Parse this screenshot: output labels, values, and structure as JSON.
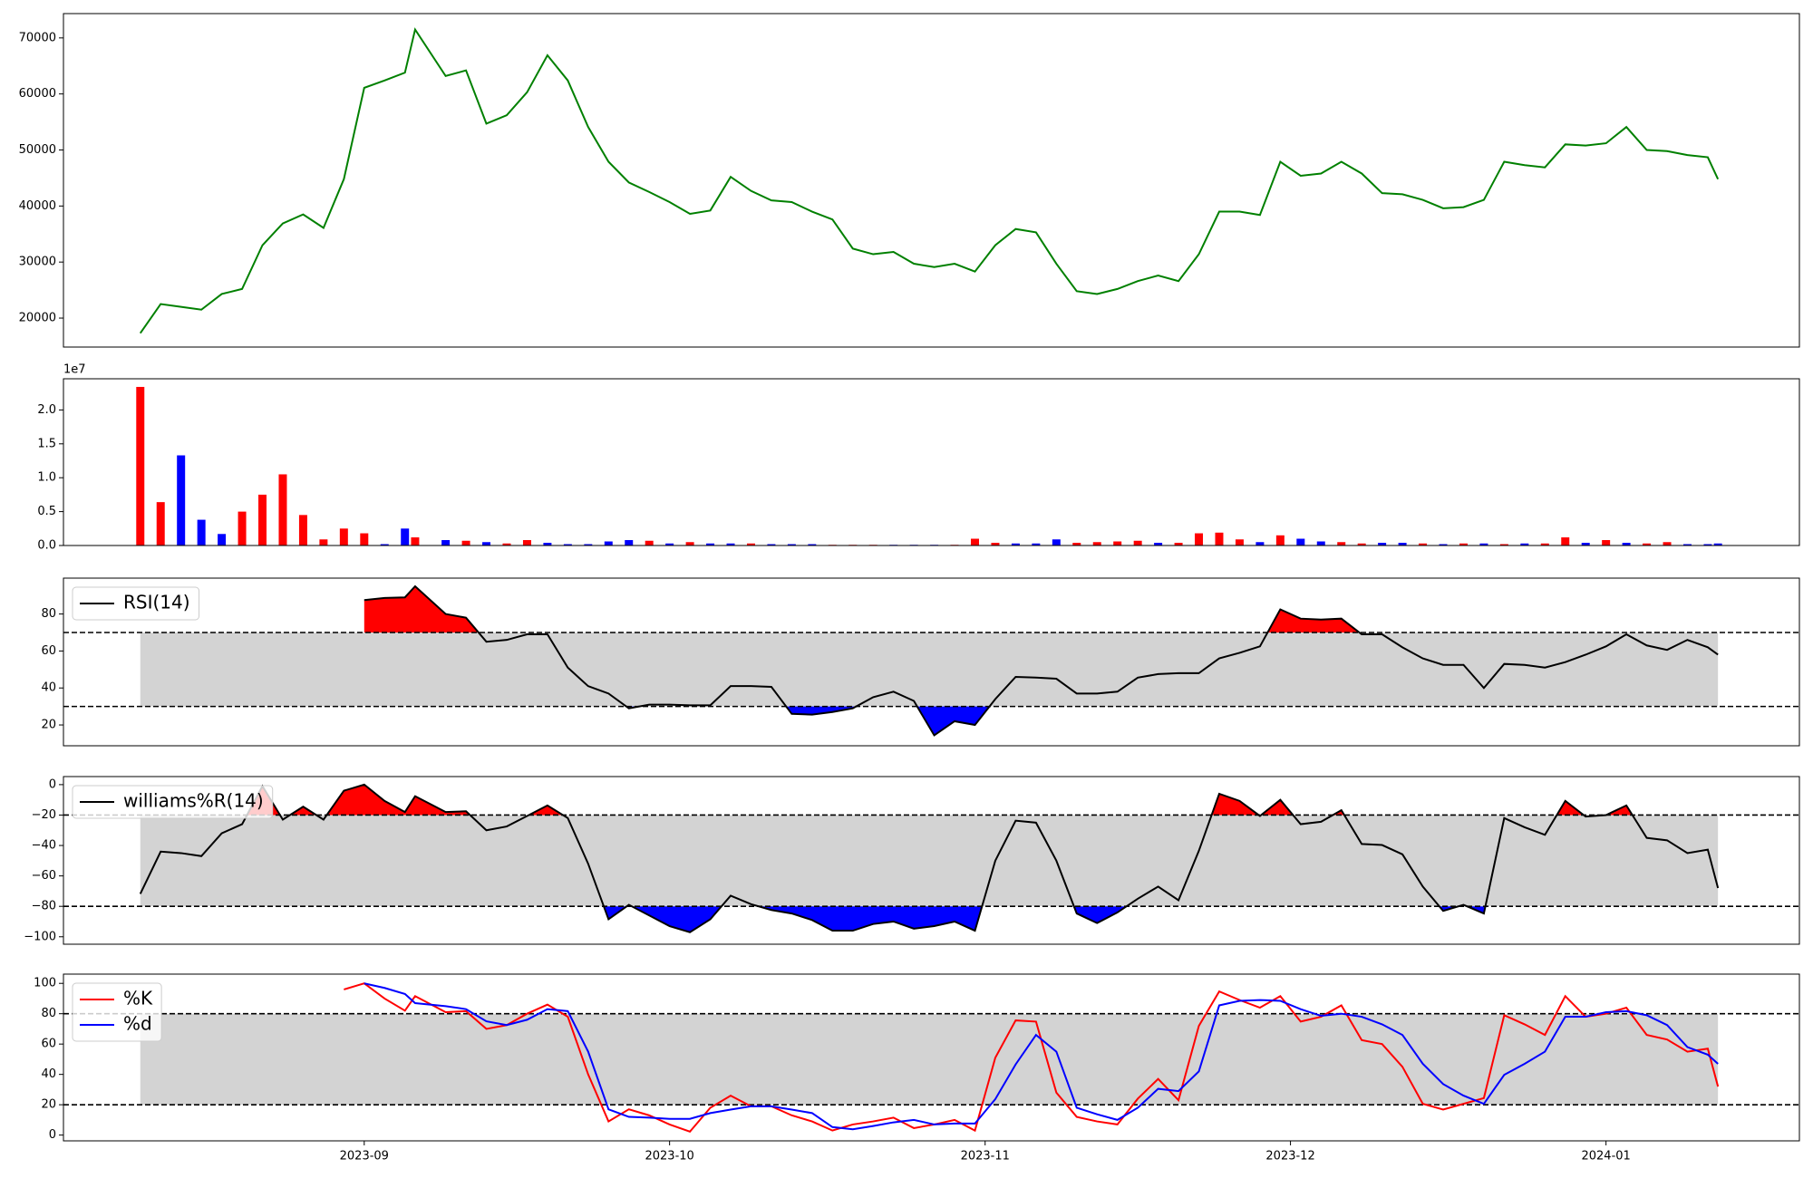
{
  "chart_data": [
    {
      "type": "line",
      "x": [
        9,
        11,
        13,
        15,
        17,
        19,
        21,
        23,
        25,
        27,
        29,
        31,
        33,
        35,
        36,
        39,
        41,
        43,
        45,
        47,
        49,
        51,
        53,
        55,
        57,
        59,
        61,
        63,
        65,
        67,
        69,
        71,
        73,
        75,
        77,
        79,
        81,
        83,
        85,
        87,
        89,
        91,
        93,
        95,
        97,
        99,
        101,
        103,
        105,
        107,
        109,
        111,
        113,
        115,
        117,
        119,
        121,
        123,
        125,
        127,
        129,
        131,
        133,
        135,
        137,
        139,
        141,
        143,
        145,
        147,
        149,
        151,
        153,
        155,
        157,
        159,
        161,
        163,
        164
      ],
      "xlim": [
        1.45,
        172
      ],
      "ylim": [
        14830,
        74340
      ],
      "yticks": [
        20000,
        30000,
        40000,
        50000,
        60000,
        70000
      ],
      "series": [
        {
          "color": "green",
          "values": [
            17300,
            22500,
            22000,
            21500,
            24300,
            25200,
            33000,
            36900,
            38500,
            36100,
            44800,
            61100,
            62400,
            63800,
            71500,
            63200,
            64200,
            54700,
            56200,
            60300,
            66900,
            62400,
            54100,
            47900,
            44200,
            42500,
            40700,
            38600,
            39200,
            45200,
            42700,
            41000,
            40700,
            39000,
            37600,
            32400,
            31400,
            31800,
            29700,
            29100,
            29700,
            28300,
            33000,
            35900,
            35300,
            29700,
            24800,
            24300,
            25200,
            26600,
            27600,
            26600,
            31400,
            39000,
            39000,
            38400,
            47900,
            45400,
            45800,
            47900,
            45800,
            42300,
            42100,
            41100,
            39600,
            39800,
            41100,
            47900,
            47300,
            46900,
            51000,
            50800,
            51200,
            54100,
            50000,
            49800,
            49100,
            48700,
            44800
          ]
        }
      ]
    },
    {
      "type": "bar",
      "x": [
        9,
        11,
        13,
        15,
        17,
        19,
        21,
        23,
        25,
        27,
        29,
        31,
        33,
        35,
        36,
        39,
        41,
        43,
        45,
        47,
        49,
        51,
        53,
        55,
        57,
        59,
        61,
        63,
        65,
        67,
        69,
        71,
        73,
        75,
        77,
        79,
        81,
        83,
        85,
        87,
        89,
        91,
        93,
        95,
        97,
        99,
        101,
        103,
        105,
        107,
        109,
        111,
        113,
        115,
        117,
        119,
        121,
        123,
        125,
        127,
        129,
        131,
        133,
        135,
        137,
        139,
        141,
        143,
        145,
        147,
        149,
        151,
        153,
        155,
        157,
        159,
        161,
        163,
        164
      ],
      "xlim": [
        1.45,
        172
      ],
      "ylim": [
        0,
        24600000
      ],
      "yticks": [
        {
          "value": 0,
          "label": "0.0"
        },
        {
          "value": 5000000,
          "label": "0.5"
        },
        {
          "value": 10000000,
          "label": "1.0"
        },
        {
          "value": 15000000,
          "label": "1.5"
        },
        {
          "value": 20000000,
          "label": "2.0"
        }
      ],
      "offset_label": "1e7",
      "values": [
        23400000,
        6400000,
        13300000,
        3800000,
        1700000,
        5000000,
        7500000,
        10500000,
        4500000,
        900000,
        2500000,
        1800000,
        200000,
        2500000,
        1200000,
        800000,
        700000,
        500000,
        300000,
        800000,
        400000,
        200000,
        200000,
        600000,
        800000,
        700000,
        300000,
        500000,
        300000,
        300000,
        300000,
        200000,
        200000,
        200000,
        100000,
        100000,
        100000,
        100000,
        100000,
        100000,
        100000,
        1000000,
        400000,
        300000,
        300000,
        900000,
        400000,
        500000,
        600000,
        700000,
        400000,
        400000,
        1800000,
        1900000,
        900000,
        500000,
        1500000,
        1000000,
        600000,
        500000,
        300000,
        400000,
        400000,
        300000,
        200000,
        300000,
        300000,
        200000,
        300000,
        300000,
        1200000,
        400000,
        800000,
        400000,
        300000,
        500000,
        200000,
        200000,
        300000
      ],
      "colors": [
        "red",
        "red",
        "blue",
        "blue",
        "blue",
        "red",
        "red",
        "red",
        "red",
        "red",
        "red",
        "red",
        "blue",
        "blue",
        "red",
        "blue",
        "red",
        "blue",
        "red",
        "red",
        "blue",
        "blue",
        "blue",
        "blue",
        "blue",
        "red",
        "blue",
        "red",
        "blue",
        "blue",
        "red",
        "blue",
        "blue",
        "blue",
        "red",
        "red",
        "red",
        "blue",
        "blue",
        "blue",
        "red",
        "red",
        "red",
        "blue",
        "blue",
        "blue",
        "red",
        "red",
        "red",
        "red",
        "blue",
        "red",
        "red",
        "red",
        "red",
        "blue",
        "red",
        "blue",
        "blue",
        "red",
        "red",
        "blue",
        "blue",
        "red",
        "blue",
        "red",
        "blue",
        "red",
        "blue",
        "red",
        "red",
        "blue",
        "red",
        "blue",
        "red",
        "red",
        "blue",
        "blue",
        "blue"
      ]
    },
    {
      "type": "line",
      "x": [
        9,
        11,
        13,
        15,
        17,
        19,
        21,
        23,
        25,
        27,
        29,
        31,
        33,
        35,
        36,
        39,
        41,
        43,
        45,
        47,
        49,
        51,
        53,
        55,
        57,
        59,
        61,
        63,
        65,
        67,
        69,
        71,
        73,
        75,
        77,
        79,
        81,
        83,
        85,
        87,
        89,
        91,
        93,
        95,
        97,
        99,
        101,
        103,
        105,
        107,
        109,
        111,
        113,
        115,
        117,
        119,
        121,
        123,
        125,
        127,
        129,
        131,
        133,
        135,
        137,
        139,
        141,
        143,
        145,
        147,
        149,
        151,
        153,
        155,
        157,
        159,
        161,
        163,
        164
      ],
      "xlim": [
        1.45,
        172
      ],
      "ylim": [
        8.75,
        99.4
      ],
      "yticks": [
        20,
        40,
        60,
        80
      ],
      "thresholds": [
        70,
        30
      ],
      "fill_colors": {
        "band": "lightgray",
        "above": "red",
        "below": "blue"
      },
      "legend": "upper left",
      "series": [
        {
          "name": "RSI(14)",
          "color": "black",
          "values": [
            null,
            null,
            null,
            null,
            null,
            null,
            null,
            null,
            null,
            null,
            null,
            87.5,
            88.7,
            89,
            95,
            80,
            78,
            65,
            66,
            69,
            69,
            51,
            41,
            37,
            29,
            31,
            31,
            30.6,
            30.6,
            41,
            41,
            40.6,
            26,
            25.6,
            27,
            29,
            35,
            38,
            33,
            14.4,
            22,
            20,
            34,
            46,
            45.6,
            45,
            37,
            37,
            38,
            45.6,
            47.5,
            48,
            48,
            56,
            59,
            62.5,
            82.5,
            77.5,
            77,
            77.5,
            69,
            69,
            62,
            56,
            52.5,
            52.5,
            40,
            53,
            52.5,
            51,
            54,
            58,
            62.5,
            69,
            63,
            60.6,
            66,
            62,
            58
          ]
        }
      ]
    },
    {
      "type": "line",
      "x": [
        9,
        11,
        13,
        15,
        17,
        19,
        21,
        23,
        25,
        27,
        29,
        31,
        33,
        35,
        36,
        39,
        41,
        43,
        45,
        47,
        49,
        51,
        53,
        55,
        57,
        59,
        61,
        63,
        65,
        67,
        69,
        71,
        73,
        75,
        77,
        79,
        81,
        83,
        85,
        87,
        89,
        91,
        93,
        95,
        97,
        99,
        101,
        103,
        105,
        107,
        109,
        111,
        113,
        115,
        117,
        119,
        121,
        123,
        125,
        127,
        129,
        131,
        133,
        135,
        137,
        139,
        141,
        143,
        145,
        147,
        149,
        151,
        153,
        155,
        157,
        159,
        161,
        163,
        164
      ],
      "xlim": [
        1.45,
        172
      ],
      "ylim": [
        -104.9,
        5.3
      ],
      "yticks": [
        0,
        {
          "value": -20,
          "label": "−20"
        },
        {
          "value": -40,
          "label": "−40"
        },
        {
          "value": -60,
          "label": "−60"
        },
        {
          "value": -80,
          "label": "−80"
        },
        {
          "value": -100,
          "label": "−100"
        }
      ],
      "thresholds": [
        -20,
        -80
      ],
      "fill_colors": {
        "band": "lightgray",
        "above": "red",
        "below": "blue"
      },
      "legend": "upper left",
      "series": [
        {
          "name": "williams%R(14)",
          "color": "black",
          "values": [
            -71.8,
            -44,
            -45,
            -47,
            -32,
            -26,
            -1,
            -23,
            -14.5,
            -23,
            -4,
            0,
            -10.7,
            -18,
            -7.6,
            -18,
            -17.5,
            -30,
            -27.5,
            -20.6,
            -13.7,
            -22,
            -52,
            -88.5,
            -79,
            -86,
            -93,
            -97,
            -88.5,
            -73,
            -78.6,
            -82.4,
            -84.7,
            -89,
            -96,
            -96,
            -91.6,
            -90,
            -94.7,
            -93,
            -90,
            -96,
            -50,
            -23.7,
            -25,
            -50,
            -84.7,
            -91,
            -84,
            -75,
            -67,
            -76,
            -43.5,
            -6,
            -10.7,
            -20.6,
            -10,
            -26,
            -24.4,
            -16.8,
            -39,
            -39.7,
            -45.8,
            -67,
            -83,
            -79,
            -84.7,
            -22,
            -28,
            -33,
            -10.7,
            -21,
            -20,
            -13.7,
            -35,
            -36.6,
            -45,
            -42.7,
            -68
          ]
        }
      ]
    },
    {
      "type": "line",
      "x": [
        9,
        11,
        13,
        15,
        17,
        19,
        21,
        23,
        25,
        27,
        29,
        31,
        33,
        35,
        36,
        39,
        41,
        43,
        45,
        47,
        49,
        51,
        53,
        55,
        57,
        59,
        61,
        63,
        65,
        67,
        69,
        71,
        73,
        75,
        77,
        79,
        81,
        83,
        85,
        87,
        89,
        91,
        93,
        95,
        97,
        99,
        101,
        103,
        105,
        107,
        109,
        111,
        113,
        115,
        117,
        119,
        121,
        123,
        125,
        127,
        129,
        131,
        133,
        135,
        137,
        139,
        141,
        143,
        145,
        147,
        149,
        151,
        153,
        155,
        157,
        159,
        161,
        163,
        164
      ],
      "xlim": [
        1.45,
        172
      ],
      "xticks": [
        {
          "value": 31,
          "label": "2023-09"
        },
        {
          "value": 61,
          "label": "2023-10"
        },
        {
          "value": 92,
          "label": "2023-11"
        },
        {
          "value": 122,
          "label": "2023-12"
        },
        {
          "value": 153,
          "label": "2024-01"
        }
      ],
      "ylim": [
        -3.8,
        106.1
      ],
      "yticks": [
        0,
        20,
        40,
        60,
        80,
        100
      ],
      "thresholds": [
        80,
        20
      ],
      "fill_colors": {
        "band": "lightgray"
      },
      "legend": "upper left",
      "series": [
        {
          "name": "%K",
          "color": "red",
          "values": [
            null,
            null,
            null,
            null,
            null,
            null,
            null,
            null,
            null,
            null,
            96,
            100,
            90,
            82,
            91.6,
            81,
            81.7,
            70,
            72.5,
            80,
            86,
            78,
            40,
            9,
            17,
            13,
            7,
            2.3,
            18,
            26,
            19,
            19,
            13,
            9,
            3,
            7,
            9,
            11.5,
            4.6,
            7,
            10,
            3,
            51,
            75.6,
            74.8,
            28,
            12,
            9,
            7,
            24,
            37,
            23,
            72,
            94.7,
            89,
            84,
            91.6,
            74.8,
            78,
            85.5,
            62.6,
            60,
            45,
            20.6,
            16.8,
            20.6,
            24.4,
            79,
            73,
            66,
            91.6,
            78,
            80,
            84,
            66,
            63,
            55,
            57,
            32
          ]
        },
        {
          "name": "%d",
          "color": "blue",
          "values": [
            null,
            null,
            null,
            null,
            null,
            null,
            null,
            null,
            null,
            null,
            null,
            100,
            97,
            93,
            87,
            85,
            83,
            75,
            72.5,
            76,
            83,
            81.7,
            55,
            17,
            12,
            11.5,
            10.7,
            10.7,
            14.5,
            16.8,
            19,
            19,
            16.8,
            14.5,
            5.3,
            3.8,
            6,
            8.4,
            10,
            7,
            7.6,
            7.6,
            23.7,
            46.6,
            66,
            55,
            18,
            13.7,
            10,
            18,
            30.5,
            29,
            42,
            85.5,
            88.5,
            89,
            88.5,
            83,
            78.6,
            80,
            78,
            73,
            66,
            47,
            33.6,
            26,
            20.6,
            39.7,
            47,
            55,
            78,
            78,
            81,
            81.7,
            79,
            72.5,
            58,
            53,
            47
          ]
        }
      ]
    }
  ]
}
